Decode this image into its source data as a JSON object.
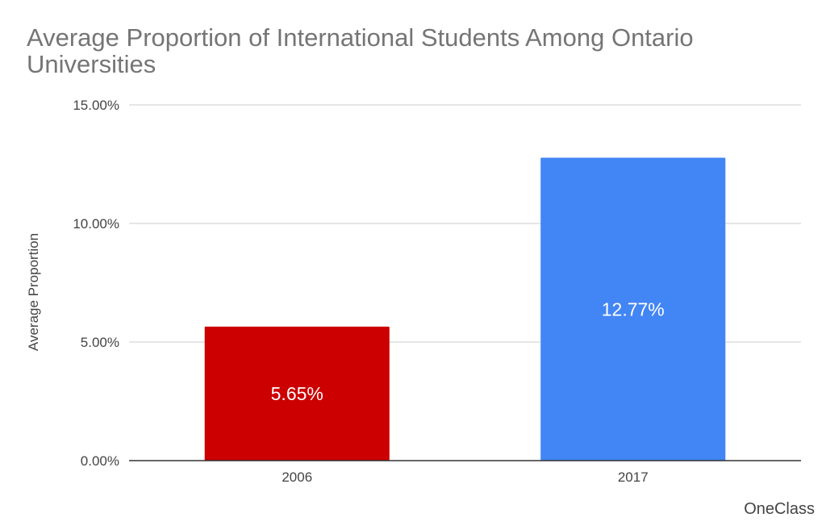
{
  "chart_data": {
    "type": "bar",
    "title": "Average Proportion of International Students Among Ontario Universities",
    "xlabel": "",
    "ylabel": "Average Proportion",
    "categories": [
      "2006",
      "2017"
    ],
    "values": [
      5.65,
      12.77
    ],
    "data_labels": [
      "5.65%",
      "12.77%"
    ],
    "bar_colors": [
      "#cc0000",
      "#4285f4"
    ],
    "ylim": [
      0,
      15
    ],
    "yticks": [
      0,
      5,
      10,
      15
    ],
    "ytick_labels": [
      "0.00%",
      "5.00%",
      "10.00%",
      "15.00%"
    ],
    "grid": true,
    "legend": "none"
  },
  "watermark": "OneClass",
  "colors": {
    "title": "#757575",
    "axis_text": "#444444",
    "gridline": "#cccccc",
    "baseline": "#333333",
    "bar_label": "#ffffff"
  }
}
